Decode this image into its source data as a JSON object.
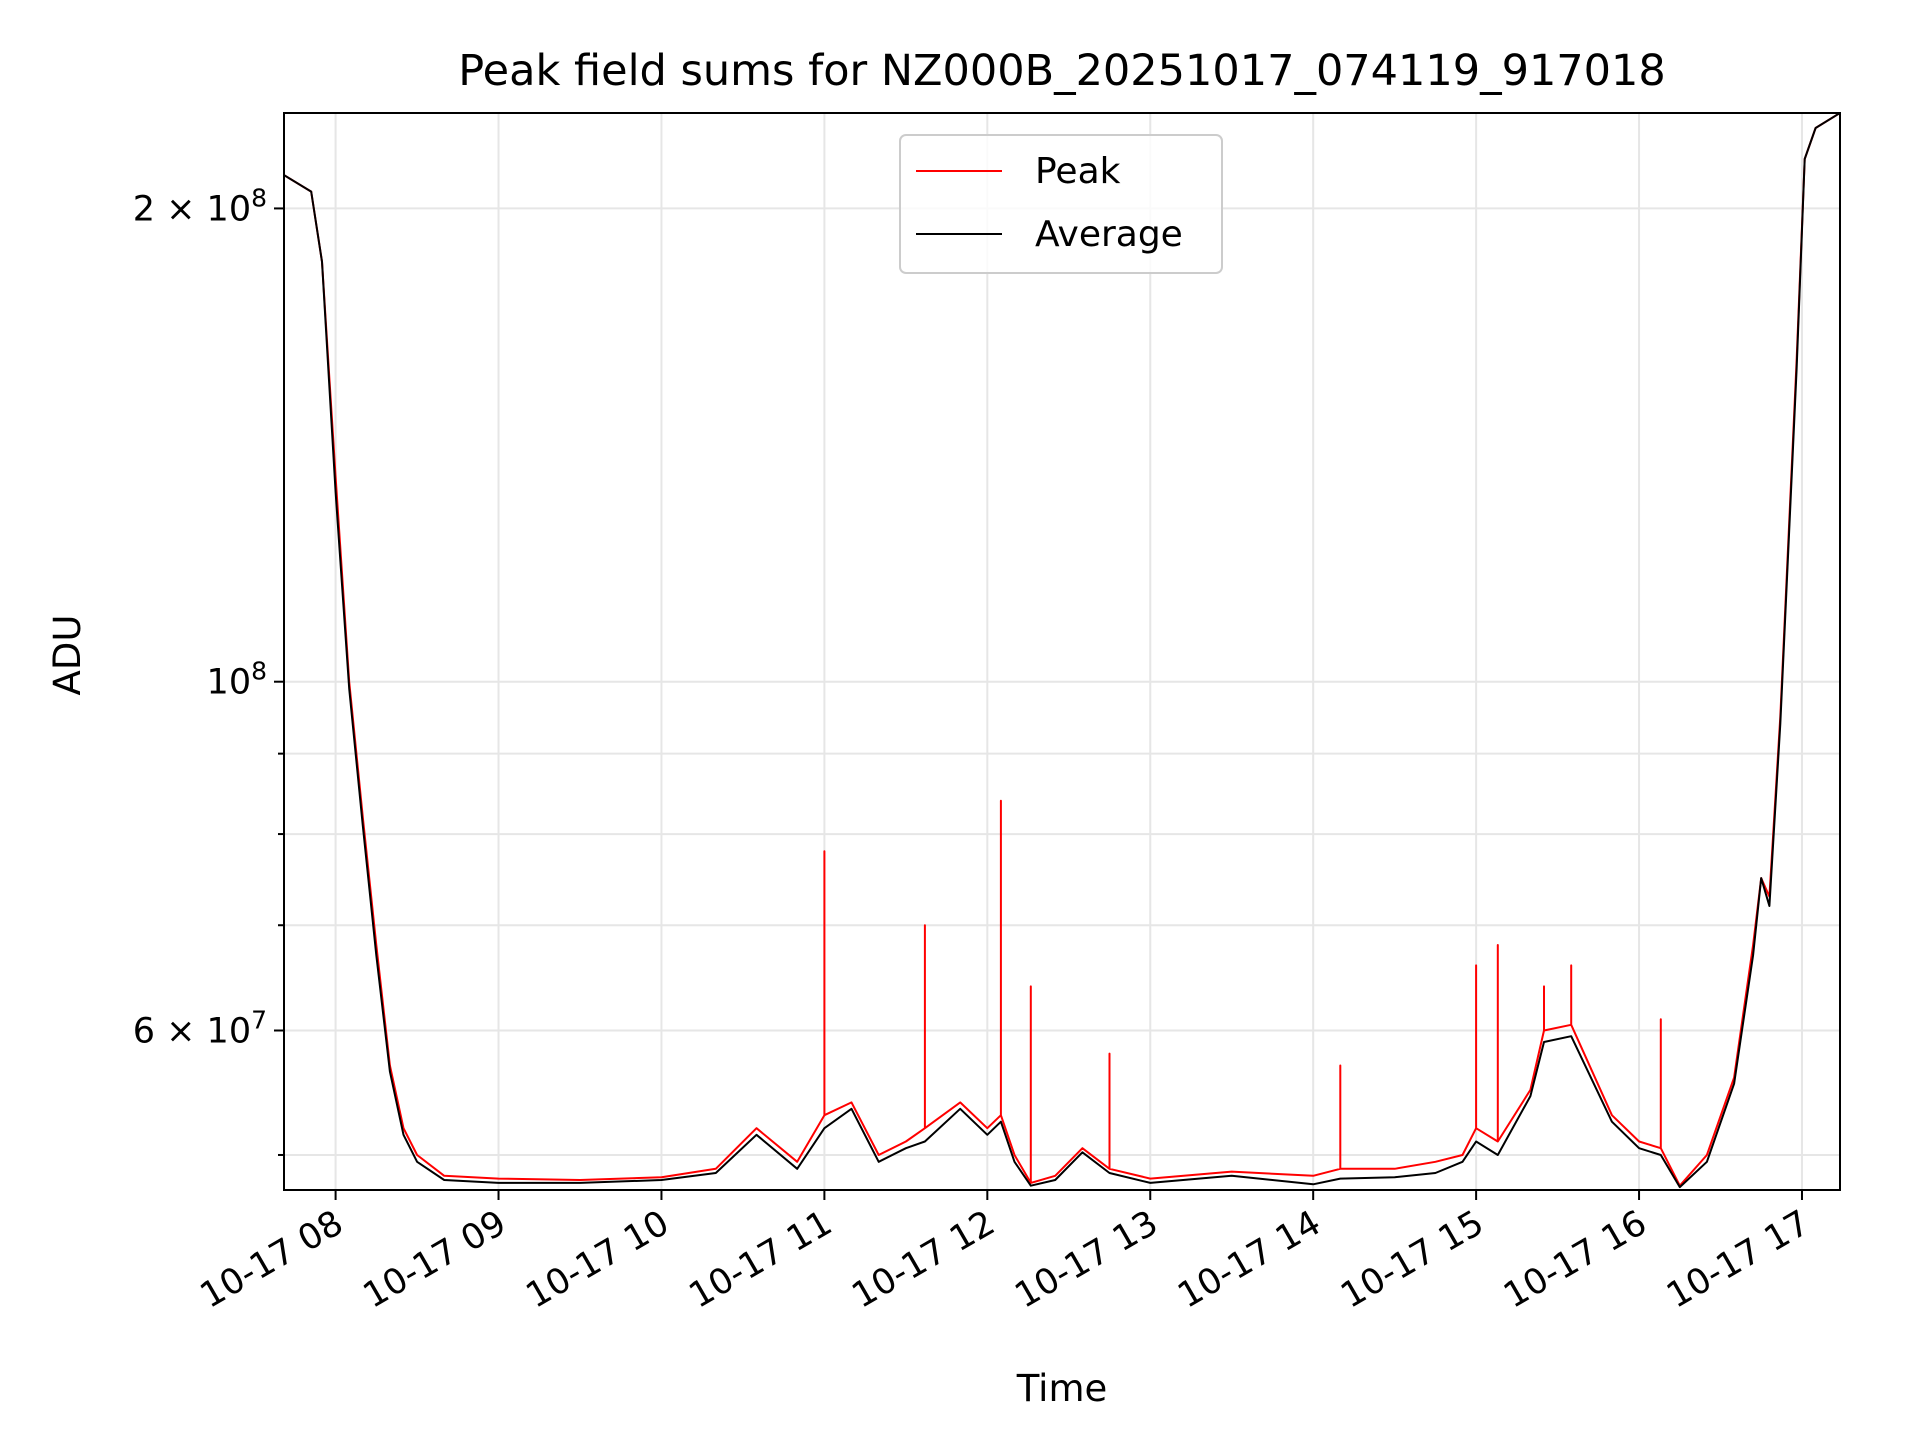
{
  "chart_data": {
    "type": "line",
    "title": "Peak field sums for NZ000B_20251017_074119_917018",
    "xlabel": "Time",
    "ylabel": "ADU",
    "yscale": "log",
    "ylim": [
      47500000,
      230000000
    ],
    "xlim": [
      "2025-10-17 07:41",
      "2025-10-17 17:14"
    ],
    "grid": true,
    "legend_position": "upper center",
    "x_ticks": [
      {
        "time": "2025-10-17 08:00",
        "label": "10-17 08"
      },
      {
        "time": "2025-10-17 09:00",
        "label": "10-17 09"
      },
      {
        "time": "2025-10-17 10:00",
        "label": "10-17 10"
      },
      {
        "time": "2025-10-17 11:00",
        "label": "10-17 11"
      },
      {
        "time": "2025-10-17 12:00",
        "label": "10-17 12"
      },
      {
        "time": "2025-10-17 13:00",
        "label": "10-17 13"
      },
      {
        "time": "2025-10-17 14:00",
        "label": "10-17 14"
      },
      {
        "time": "2025-10-17 15:00",
        "label": "10-17 15"
      },
      {
        "time": "2025-10-17 16:00",
        "label": "10-17 16"
      },
      {
        "time": "2025-10-17 17:00",
        "label": "10-17 17"
      }
    ],
    "y_major_ticks": [
      {
        "value": 100000000,
        "base": "10",
        "exp": "8"
      },
      {
        "value": 200000000,
        "base": "2 × 10",
        "exp": "8"
      },
      {
        "value": 60000000,
        "base": "6 × 10",
        "exp": "7"
      }
    ],
    "y_minor_ticks": [
      50000000,
      70000000,
      80000000,
      90000000
    ],
    "series": [
      {
        "name": "Peak",
        "color": "#ff0000",
        "points": [
          [
            "2025-10-17 07:41",
            210000000
          ],
          [
            "2025-10-17 07:51",
            205000000
          ],
          [
            "2025-10-17 07:55",
            185000000
          ],
          [
            "2025-10-17 08:00",
            135000000
          ],
          [
            "2025-10-17 08:05",
            100000000
          ],
          [
            "2025-10-17 08:10",
            82000000
          ],
          [
            "2025-10-17 08:15",
            68000000
          ],
          [
            "2025-10-17 08:20",
            57000000
          ],
          [
            "2025-10-17 08:25",
            52000000
          ],
          [
            "2025-10-17 08:30",
            50000000
          ],
          [
            "2025-10-17 08:40",
            48500000
          ],
          [
            "2025-10-17 09:00",
            48300000
          ],
          [
            "2025-10-17 09:30",
            48200000
          ],
          [
            "2025-10-17 10:00",
            48400000
          ],
          [
            "2025-10-17 10:20",
            49000000
          ],
          [
            "2025-10-17 10:35",
            52000000
          ],
          [
            "2025-10-17 10:50",
            49500000
          ],
          [
            "2025-10-17 11:00",
            53000000
          ],
          [
            "2025-10-17 11:00",
            78000000
          ],
          [
            "2025-10-17 11:00",
            53000000
          ],
          [
            "2025-10-17 11:10",
            54000000
          ],
          [
            "2025-10-17 11:20",
            50000000
          ],
          [
            "2025-10-17 11:30",
            51000000
          ],
          [
            "2025-10-17 11:37",
            52000000
          ],
          [
            "2025-10-17 11:37",
            70000000
          ],
          [
            "2025-10-17 11:37",
            52000000
          ],
          [
            "2025-10-17 11:50",
            54000000
          ],
          [
            "2025-10-17 12:00",
            52000000
          ],
          [
            "2025-10-17 12:05",
            53000000
          ],
          [
            "2025-10-17 12:05",
            84000000
          ],
          [
            "2025-10-17 12:05",
            53000000
          ],
          [
            "2025-10-17 12:10",
            50000000
          ],
          [
            "2025-10-17 12:16",
            48000000
          ],
          [
            "2025-10-17 12:16",
            64000000
          ],
          [
            "2025-10-17 12:16",
            48000000
          ],
          [
            "2025-10-17 12:25",
            48500000
          ],
          [
            "2025-10-17 12:35",
            50500000
          ],
          [
            "2025-10-17 12:45",
            49000000
          ],
          [
            "2025-10-17 12:45",
            58000000
          ],
          [
            "2025-10-17 12:45",
            49000000
          ],
          [
            "2025-10-17 13:00",
            48300000
          ],
          [
            "2025-10-17 13:30",
            48800000
          ],
          [
            "2025-10-17 14:00",
            48500000
          ],
          [
            "2025-10-17 14:10",
            49000000
          ],
          [
            "2025-10-17 14:10",
            57000000
          ],
          [
            "2025-10-17 14:10",
            49000000
          ],
          [
            "2025-10-17 14:30",
            49000000
          ],
          [
            "2025-10-17 14:45",
            49500000
          ],
          [
            "2025-10-17 14:55",
            50000000
          ],
          [
            "2025-10-17 15:00",
            52000000
          ],
          [
            "2025-10-17 15:00",
            66000000
          ],
          [
            "2025-10-17 15:00",
            52000000
          ],
          [
            "2025-10-17 15:08",
            51000000
          ],
          [
            "2025-10-17 15:08",
            68000000
          ],
          [
            "2025-10-17 15:08",
            51000000
          ],
          [
            "2025-10-17 15:20",
            55000000
          ],
          [
            "2025-10-17 15:25",
            60000000
          ],
          [
            "2025-10-17 15:25",
            64000000
          ],
          [
            "2025-10-17 15:25",
            60000000
          ],
          [
            "2025-10-17 15:35",
            60500000
          ],
          [
            "2025-10-17 15:35",
            66000000
          ],
          [
            "2025-10-17 15:35",
            60500000
          ],
          [
            "2025-10-17 15:50",
            53000000
          ],
          [
            "2025-10-17 16:00",
            51000000
          ],
          [
            "2025-10-17 16:08",
            50500000
          ],
          [
            "2025-10-17 16:08",
            61000000
          ],
          [
            "2025-10-17 16:08",
            50500000
          ],
          [
            "2025-10-17 16:15",
            47800000
          ],
          [
            "2025-10-17 16:25",
            50000000
          ],
          [
            "2025-10-17 16:35",
            56000000
          ],
          [
            "2025-10-17 16:42",
            68000000
          ],
          [
            "2025-10-17 16:45",
            75000000
          ],
          [
            "2025-10-17 16:48",
            73000000
          ],
          [
            "2025-10-17 16:52",
            95000000
          ],
          [
            "2025-10-17 16:58",
            160000000
          ],
          [
            "2025-10-17 17:01",
            215000000
          ],
          [
            "2025-10-17 17:05",
            225000000
          ],
          [
            "2025-10-17 17:14",
            230000000
          ]
        ]
      },
      {
        "name": "Average",
        "color": "#000000",
        "points": [
          [
            "2025-10-17 07:41",
            210000000
          ],
          [
            "2025-10-17 07:51",
            205000000
          ],
          [
            "2025-10-17 07:55",
            185000000
          ],
          [
            "2025-10-17 08:00",
            132000000
          ],
          [
            "2025-10-17 08:05",
            99000000
          ],
          [
            "2025-10-17 08:10",
            81000000
          ],
          [
            "2025-10-17 08:15",
            67000000
          ],
          [
            "2025-10-17 08:20",
            56500000
          ],
          [
            "2025-10-17 08:25",
            51500000
          ],
          [
            "2025-10-17 08:30",
            49500000
          ],
          [
            "2025-10-17 08:40",
            48200000
          ],
          [
            "2025-10-17 09:00",
            48000000
          ],
          [
            "2025-10-17 09:30",
            48000000
          ],
          [
            "2025-10-17 10:00",
            48200000
          ],
          [
            "2025-10-17 10:20",
            48700000
          ],
          [
            "2025-10-17 10:35",
            51500000
          ],
          [
            "2025-10-17 10:50",
            49000000
          ],
          [
            "2025-10-17 11:00",
            52000000
          ],
          [
            "2025-10-17 11:10",
            53500000
          ],
          [
            "2025-10-17 11:20",
            49500000
          ],
          [
            "2025-10-17 11:30",
            50500000
          ],
          [
            "2025-10-17 11:37",
            51000000
          ],
          [
            "2025-10-17 11:50",
            53500000
          ],
          [
            "2025-10-17 12:00",
            51500000
          ],
          [
            "2025-10-17 12:05",
            52500000
          ],
          [
            "2025-10-17 12:10",
            49500000
          ],
          [
            "2025-10-17 12:16",
            47800000
          ],
          [
            "2025-10-17 12:25",
            48200000
          ],
          [
            "2025-10-17 12:35",
            50200000
          ],
          [
            "2025-10-17 12:45",
            48700000
          ],
          [
            "2025-10-17 13:00",
            48000000
          ],
          [
            "2025-10-17 13:30",
            48500000
          ],
          [
            "2025-10-17 14:00",
            47900000
          ],
          [
            "2025-10-17 14:10",
            48300000
          ],
          [
            "2025-10-17 14:30",
            48400000
          ],
          [
            "2025-10-17 14:45",
            48700000
          ],
          [
            "2025-10-17 14:55",
            49500000
          ],
          [
            "2025-10-17 15:00",
            51000000
          ],
          [
            "2025-10-17 15:08",
            50000000
          ],
          [
            "2025-10-17 15:20",
            54500000
          ],
          [
            "2025-10-17 15:25",
            59000000
          ],
          [
            "2025-10-17 15:35",
            59500000
          ],
          [
            "2025-10-17 15:50",
            52500000
          ],
          [
            "2025-10-17 16:00",
            50500000
          ],
          [
            "2025-10-17 16:08",
            50000000
          ],
          [
            "2025-10-17 16:15",
            47700000
          ],
          [
            "2025-10-17 16:25",
            49500000
          ],
          [
            "2025-10-17 16:35",
            55500000
          ],
          [
            "2025-10-17 16:42",
            67000000
          ],
          [
            "2025-10-17 16:45",
            75000000
          ],
          [
            "2025-10-17 16:48",
            72000000
          ],
          [
            "2025-10-17 16:52",
            94000000
          ],
          [
            "2025-10-17 16:58",
            158000000
          ],
          [
            "2025-10-17 17:01",
            215000000
          ],
          [
            "2025-10-17 17:05",
            225000000
          ],
          [
            "2025-10-17 17:14",
            230000000
          ]
        ]
      }
    ]
  }
}
